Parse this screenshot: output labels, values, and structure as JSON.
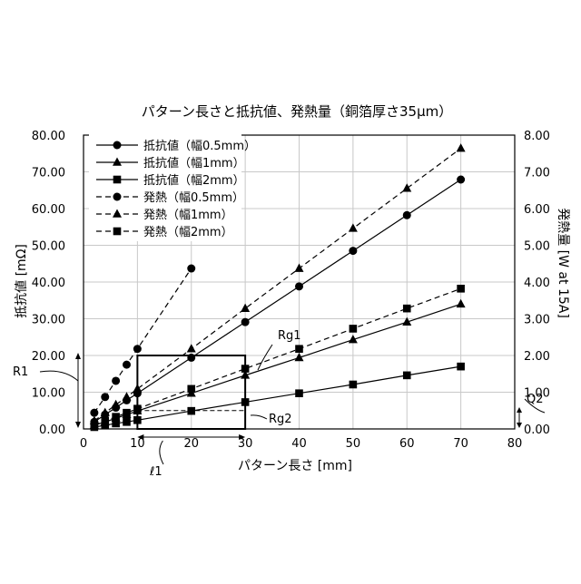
{
  "chart_data": {
    "type": "line",
    "title": "パターン長さと抵抗値、発熱量（銅箔厚さ35μm）",
    "xlabel": "パターン長さ [mm]",
    "ylabel": "抵抗値 [mΩ]",
    "y2label": "発熱量 [W at 15A]",
    "xlim": [
      0,
      80
    ],
    "ylim": [
      0,
      80
    ],
    "y2lim": [
      0,
      8
    ],
    "x_ticks": [
      "0",
      "10",
      "20",
      "30",
      "40",
      "50",
      "60",
      "70",
      "80"
    ],
    "y_ticks": [
      "0.00",
      "10.00",
      "20.00",
      "30.00",
      "40.00",
      "50.00",
      "60.00",
      "70.00",
      "80.00"
    ],
    "y2_ticks": [
      "0.00",
      "1.00",
      "2.00",
      "3.00",
      "4.00",
      "5.00",
      "6.00",
      "7.00",
      "8.00"
    ],
    "grid": true,
    "legend_position": "top-left",
    "series": [
      {
        "name": "抵抗値（幅0.5mm）",
        "axis": "left",
        "style": "solid",
        "marker": "circle",
        "x": [
          2,
          4,
          6,
          8,
          10,
          20,
          30,
          40,
          50,
          60,
          70
        ],
        "y": [
          1.9,
          3.9,
          5.8,
          7.8,
          9.7,
          19.4,
          29.1,
          38.8,
          48.5,
          58.2,
          67.9
        ]
      },
      {
        "name": "抵抗値（幅1mm）",
        "axis": "left",
        "style": "solid",
        "marker": "triangle",
        "x": [
          2,
          4,
          6,
          8,
          10,
          20,
          30,
          40,
          50,
          60,
          70
        ],
        "y": [
          1.0,
          1.9,
          2.9,
          3.9,
          4.9,
          9.7,
          14.6,
          19.4,
          24.3,
          29.1,
          34.0
        ]
      },
      {
        "name": "抵抗値（幅2mm）",
        "axis": "left",
        "style": "solid",
        "marker": "square",
        "x": [
          2,
          4,
          6,
          8,
          10,
          20,
          30,
          40,
          50,
          60,
          70
        ],
        "y": [
          0.5,
          1.0,
          1.5,
          1.9,
          2.4,
          4.9,
          7.3,
          9.7,
          12.1,
          14.6,
          17.0
        ]
      },
      {
        "name": "発熱（幅0.5mm）",
        "axis": "right",
        "style": "dashed",
        "marker": "circle",
        "x": [
          2,
          4,
          6,
          8,
          10,
          20
        ],
        "y": [
          0.44,
          0.87,
          1.31,
          1.75,
          2.18,
          4.37
        ]
      },
      {
        "name": "発熱（幅1mm）",
        "axis": "right",
        "style": "dashed",
        "marker": "triangle",
        "x": [
          2,
          4,
          6,
          8,
          10,
          20,
          30,
          40,
          50,
          60,
          70
        ],
        "y": [
          0.22,
          0.44,
          0.66,
          0.87,
          1.09,
          2.18,
          3.28,
          4.37,
          5.46,
          6.55,
          7.64
        ]
      },
      {
        "name": "発熱（幅2mm）",
        "axis": "right",
        "style": "dashed",
        "marker": "square",
        "x": [
          2,
          4,
          6,
          8,
          10,
          20,
          30,
          40,
          50,
          60,
          70
        ],
        "y": [
          0.11,
          0.22,
          0.33,
          0.44,
          0.55,
          1.09,
          1.64,
          2.18,
          2.73,
          3.28,
          3.82
        ]
      }
    ],
    "annotations": {
      "rg1": "Rg1",
      "rg2": "Rg2",
      "r1": "R1",
      "q2": "Q2",
      "l1": "ℓ1"
    }
  }
}
